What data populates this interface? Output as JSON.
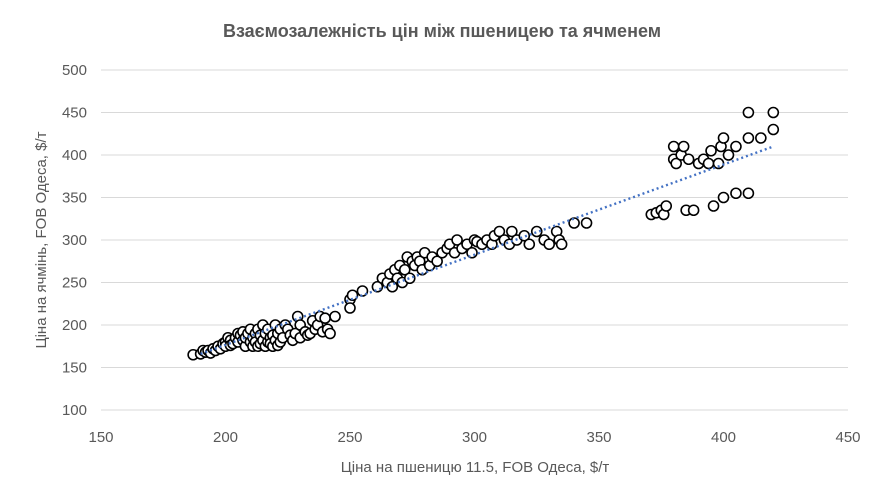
{
  "chart_data": {
    "type": "scatter",
    "title": "Взаємозалежність цін між пшеницею та ячменем",
    "xlabel": "Ціна на пшеницю 11.5, FOB Одеса, $/т",
    "ylabel": "Ціна на ячмінь, FOB Одеса, $/т",
    "xlim": [
      150,
      450
    ],
    "ylim": [
      100,
      500
    ],
    "xticks": [
      "150",
      "200",
      "250",
      "300",
      "350",
      "400",
      "450"
    ],
    "yticks": [
      "100",
      "150",
      "200",
      "250",
      "300",
      "350",
      "400",
      "450",
      "500"
    ],
    "grid": "horizontal",
    "trendline": {
      "type": "linear",
      "x": [
        190,
        420
      ],
      "y": [
        166,
        410
      ],
      "color": "#4472C4",
      "style": "dotted"
    },
    "marker_color": "#000000",
    "series": [
      {
        "x": [
          187,
          190,
          191,
          192,
          193,
          194,
          195,
          196,
          197,
          198,
          199,
          200,
          200,
          201,
          202,
          202,
          203,
          204,
          205,
          205,
          206,
          207,
          207,
          208,
          208,
          209,
          210,
          210,
          211,
          211,
          212,
          212,
          213,
          213,
          214,
          214,
          215,
          215,
          216,
          216,
          217,
          217,
          218,
          218,
          219,
          219,
          220,
          220,
          221,
          221,
          222,
          222,
          223,
          224,
          225,
          226,
          227,
          228,
          229,
          230,
          230,
          232,
          233,
          234,
          235,
          236,
          237,
          238,
          239,
          240,
          241,
          242,
          244,
          250,
          250,
          251,
          255,
          261,
          263,
          265,
          266,
          267,
          268,
          269,
          270,
          271,
          272,
          273,
          274,
          275,
          276,
          277,
          278,
          279,
          280,
          282,
          283,
          285,
          287,
          289,
          290,
          292,
          293,
          295,
          297,
          299,
          300,
          301,
          303,
          305,
          307,
          308,
          310,
          312,
          314,
          315,
          317,
          320,
          322,
          325,
          328,
          330,
          333,
          334,
          335,
          340,
          345,
          371,
          373,
          375,
          376,
          377,
          380,
          380,
          381,
          383,
          384,
          385,
          386,
          388,
          390,
          392,
          394,
          395,
          396,
          398,
          399,
          400,
          400,
          402,
          405,
          405,
          410,
          410,
          410,
          415,
          420,
          420
        ],
        "y": [
          165,
          166,
          170,
          168,
          170,
          167,
          172,
          170,
          175,
          172,
          178,
          180,
          175,
          185,
          182,
          176,
          178,
          185,
          190,
          180,
          188,
          182,
          192,
          175,
          185,
          190,
          195,
          180,
          185,
          175,
          190,
          180,
          195,
          175,
          188,
          178,
          200,
          182,
          190,
          175,
          195,
          180,
          185,
          178,
          188,
          175,
          200,
          182,
          190,
          176,
          195,
          180,
          185,
          200,
          195,
          188,
          182,
          190,
          210,
          200,
          185,
          192,
          188,
          190,
          205,
          195,
          200,
          210,
          192,
          208,
          195,
          190,
          210,
          230,
          220,
          235,
          240,
          245,
          255,
          250,
          260,
          245,
          265,
          255,
          270,
          250,
          265,
          280,
          255,
          275,
          270,
          280,
          275,
          265,
          285,
          270,
          280,
          275,
          285,
          290,
          295,
          285,
          300,
          290,
          295,
          285,
          300,
          298,
          295,
          300,
          295,
          305,
          310,
          300,
          295,
          310,
          300,
          305,
          295,
          310,
          300,
          295,
          310,
          300,
          295,
          320,
          320,
          330,
          332,
          335,
          330,
          340,
          395,
          410,
          390,
          400,
          410,
          335,
          395,
          335,
          390,
          395,
          390,
          405,
          340,
          390,
          410,
          420,
          350,
          400,
          355,
          410,
          450,
          420,
          355,
          420,
          450,
          430
        ]
      }
    ]
  }
}
